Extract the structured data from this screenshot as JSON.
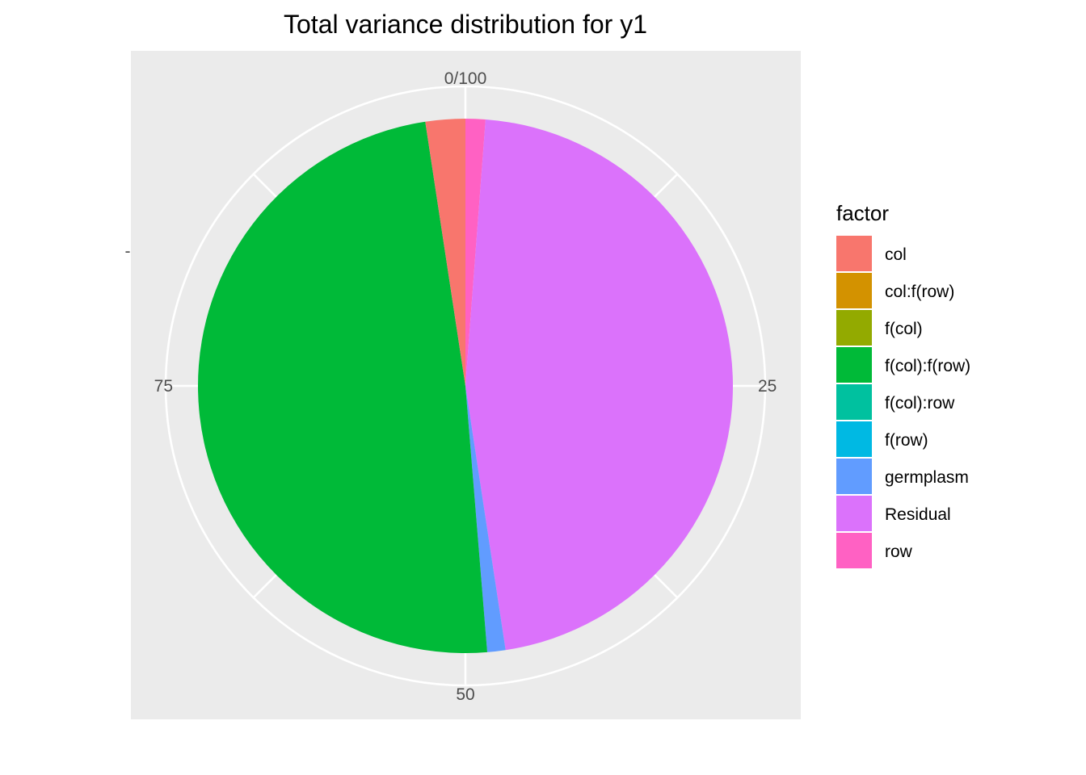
{
  "chart_data": {
    "type": "pie",
    "title": "Total variance distribution for y1",
    "ylabel": "-",
    "theta_ticks": [
      {
        "value": 0,
        "label": "0/100"
      },
      {
        "value": 25,
        "label": "25"
      },
      {
        "value": 50,
        "label": "50"
      },
      {
        "value": 75,
        "label": "75"
      }
    ],
    "legend": {
      "title": "factor",
      "position": "right",
      "entries": [
        {
          "name": "col",
          "color": "#F8766D"
        },
        {
          "name": "col:f(row)",
          "color": "#D39200"
        },
        {
          "name": "f(col)",
          "color": "#93AA00"
        },
        {
          "name": "f(col):f(row)",
          "color": "#00BA38"
        },
        {
          "name": "f(col):row",
          "color": "#00C19F"
        },
        {
          "name": "f(row)",
          "color": "#00B9E3"
        },
        {
          "name": "germplasm",
          "color": "#619CFF"
        },
        {
          "name": "Residual",
          "color": "#DB72FB"
        },
        {
          "name": "row",
          "color": "#FF61C3"
        }
      ]
    },
    "slices": [
      {
        "name": "row",
        "value": 1.2,
        "color": "#FF61C3"
      },
      {
        "name": "Residual",
        "value": 46.4,
        "color": "#DB72FB"
      },
      {
        "name": "germplasm",
        "value": 1.1,
        "color": "#619CFF"
      },
      {
        "name": "f(col):f(row)",
        "value": 48.9,
        "color": "#00BA38"
      },
      {
        "name": "col",
        "value": 2.4,
        "color": "#F8766D"
      }
    ],
    "panel_background": "#EBEBEB",
    "grid_color": "#FFFFFF"
  }
}
